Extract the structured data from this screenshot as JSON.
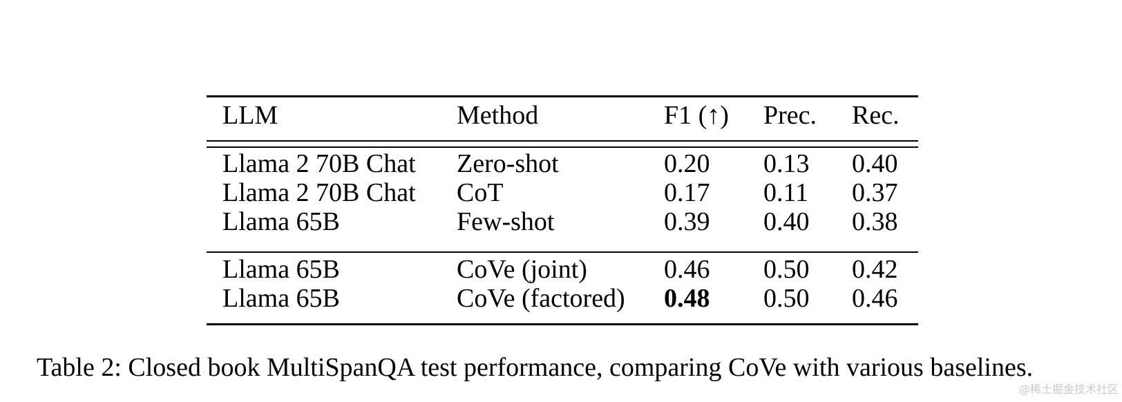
{
  "table": {
    "headers": {
      "llm": "LLM",
      "method": "Method",
      "f1": "F1 (↑)",
      "prec": "Prec.",
      "rec": "Rec."
    },
    "rows": [
      {
        "llm": "Llama 2 70B Chat",
        "method": "Zero-shot",
        "f1": "0.20",
        "prec": "0.13",
        "rec": "0.40"
      },
      {
        "llm": "Llama 2 70B Chat",
        "method": "CoT",
        "f1": "0.17",
        "prec": "0.11",
        "rec": "0.37"
      },
      {
        "llm": "Llama 65B",
        "method": "Few-shot",
        "f1": "0.39",
        "prec": "0.40",
        "rec": "0.38"
      },
      {
        "llm": "Llama 65B",
        "method": "CoVe (joint)",
        "f1": "0.46",
        "prec": "0.50",
        "rec": "0.42"
      },
      {
        "llm": "Llama 65B",
        "method": "CoVe (factored)",
        "f1": "0.48",
        "prec": "0.50",
        "rec": "0.46"
      }
    ],
    "bold_best_f1": "0.48"
  },
  "caption": "Table 2: Closed book MultiSpanQA test performance, comparing CoVe with various baselines.",
  "watermark": "@稀土掘金技术社区"
}
